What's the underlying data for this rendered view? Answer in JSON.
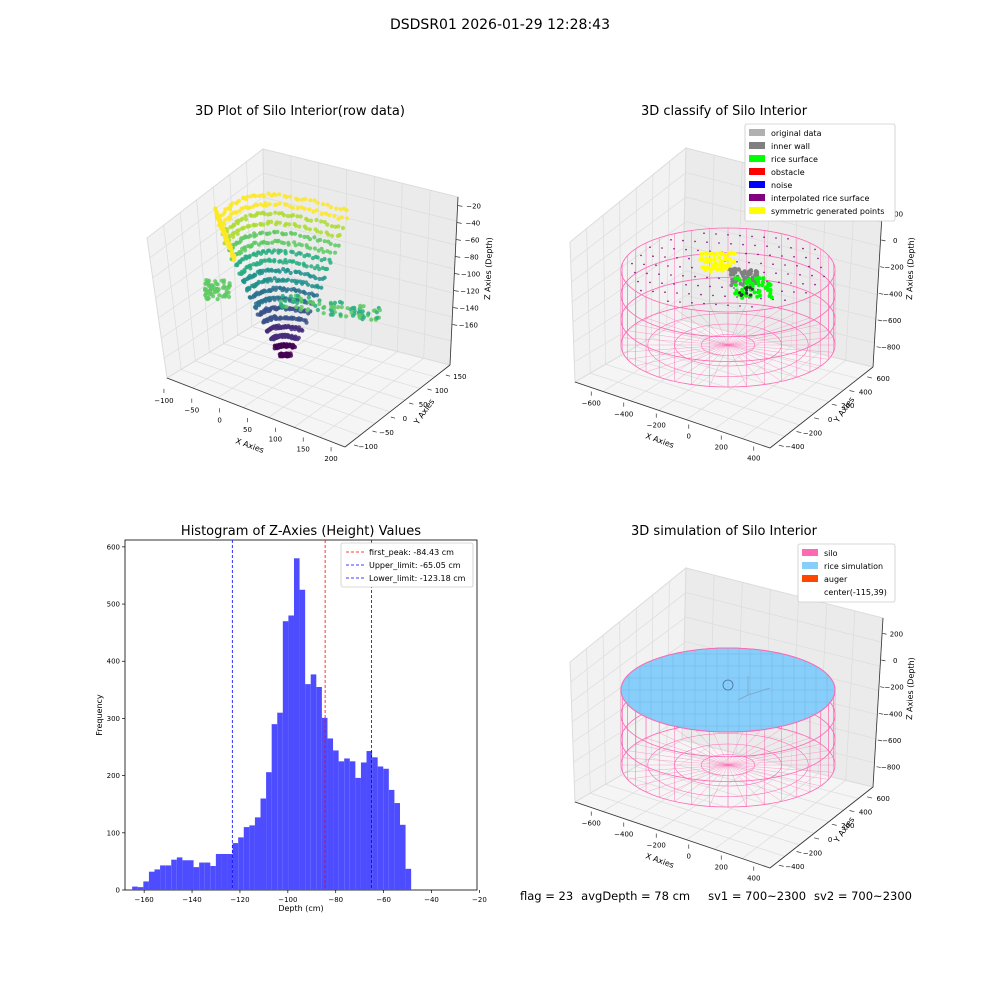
{
  "figure_title": "DSDSR01 2026-01-29 12:28:43",
  "status": {
    "flag": "flag = 23",
    "avg_depth": "avgDepth = 78 cm",
    "sv1": "sv1 = 700~2300",
    "sv2": "sv2 = 700~2300"
  },
  "colors": {
    "hist_bar": "#4d4dff",
    "first_peak": "#ff0000",
    "limits": "#0000ff",
    "silo": "#ff69b4",
    "rice_simulation": "#87cefa",
    "auger": "#ff4500",
    "original_data": "#b0b0b0",
    "inner_wall": "#808080",
    "rice_surface": "#00ff00",
    "obstacle": "#ff0000",
    "noise": "#0000ff",
    "interpolated_rice_surface": "#800080",
    "symmetric_generated_points": "#ffff00"
  },
  "chart_data": [
    {
      "type": "scatter",
      "projection": "3d",
      "title": "3D Plot of Silo Interior(row data)",
      "xlabel": "X Axies",
      "ylabel": "Y Axies",
      "zlabel": "Z Axies (Depth)",
      "x_ticks": [
        "−100",
        "−50",
        "0",
        "50",
        "100",
        "150",
        "200"
      ],
      "y_ticks": [
        "−100",
        "−50",
        "0",
        "50",
        "100",
        "150"
      ],
      "z_ticks": [
        "−20",
        "−40",
        "−60",
        "−80",
        "−100",
        "−120",
        "−140",
        "−160"
      ],
      "xlim": [
        -110,
        200
      ],
      "ylim": [
        -110,
        160
      ],
      "zlim": [
        -165,
        -20
      ],
      "colormap": "viridis"
    },
    {
      "type": "scatter",
      "projection": "3d",
      "title": "3D classify of Silo Interior",
      "xlabel": "X Axies",
      "ylabel": "Y Axies",
      "zlabel": "Z Axies (Depth)",
      "x_ticks": [
        "−600",
        "−400",
        "−200",
        "0",
        "200",
        "400"
      ],
      "y_ticks": [
        "−400",
        "−200",
        "0",
        "200",
        "400",
        "600"
      ],
      "z_ticks": [
        "200",
        "0",
        "−200",
        "−400",
        "−600",
        "−800"
      ],
      "xlim": [
        -700,
        450
      ],
      "ylim": [
        -450,
        650
      ],
      "zlim": [
        -800,
        200
      ],
      "legend_position": "top-right",
      "legend": [
        "original data",
        "inner wall",
        "rice surface",
        "obstacle",
        "noise",
        "interpolated rice surface",
        "symmetric generated points"
      ]
    },
    {
      "type": "bar",
      "title": "Histogram of Z-Axies (Height) Values",
      "xlabel": "Depth (cm)",
      "ylabel": "Frequency",
      "xlim": [
        -168,
        -21
      ],
      "ylim": [
        0,
        612
      ],
      "x_ticks": [
        -160,
        -140,
        -120,
        -100,
        -80,
        -60,
        -40,
        -20
      ],
      "x_tick_labels": [
        "−160",
        "−140",
        "−120",
        "−100",
        "−80",
        "−60",
        "−40",
        "−20"
      ],
      "y_ticks": [
        0,
        100,
        200,
        300,
        400,
        500,
        600
      ],
      "y_tick_labels": [
        "0",
        "100",
        "200",
        "300",
        "400",
        "500",
        "600"
      ],
      "bin_start": -165,
      "bin_width": 2.33,
      "values": [
        6,
        5,
        15,
        32,
        36,
        43,
        43,
        53,
        57,
        52,
        52,
        40,
        48,
        48,
        42,
        63,
        63,
        63,
        82,
        92,
        110,
        113,
        127,
        160,
        206,
        290,
        310,
        470,
        480,
        580,
        525,
        360,
        377,
        355,
        301,
        265,
        244,
        225,
        230,
        225,
        196,
        223,
        243,
        232,
        216,
        212,
        175,
        152,
        114,
        37
      ],
      "vlines": [
        {
          "x": -84.43,
          "label": "first_peak: -84.43 cm",
          "color": "#ff0000"
        },
        {
          "x": -65.05,
          "label": "Upper_limit: -65.05 cm",
          "color": "#0000ff"
        },
        {
          "x": -123.18,
          "label": "Lower_limit: -123.18 cm",
          "color": "#0000ff"
        }
      ],
      "legend_position": "top-right"
    },
    {
      "type": "area",
      "projection": "3d",
      "title": "3D simulation of Silo Interior",
      "xlabel": "X Axies",
      "ylabel": "Y Axies",
      "zlabel": "Z Axies (Depth)",
      "x_ticks": [
        "−600",
        "−400",
        "−200",
        "0",
        "200",
        "400"
      ],
      "y_ticks": [
        "−400",
        "−200",
        "0",
        "200",
        "400",
        "600"
      ],
      "z_ticks": [
        "200",
        "0",
        "−200",
        "−400",
        "−600",
        "−800"
      ],
      "xlim": [
        -700,
        450
      ],
      "ylim": [
        -450,
        650
      ],
      "zlim": [
        -800,
        200
      ],
      "legend_position": "top-right",
      "legend": [
        "silo",
        "rice simulation",
        "auger",
        "center(-115,39)"
      ]
    }
  ]
}
